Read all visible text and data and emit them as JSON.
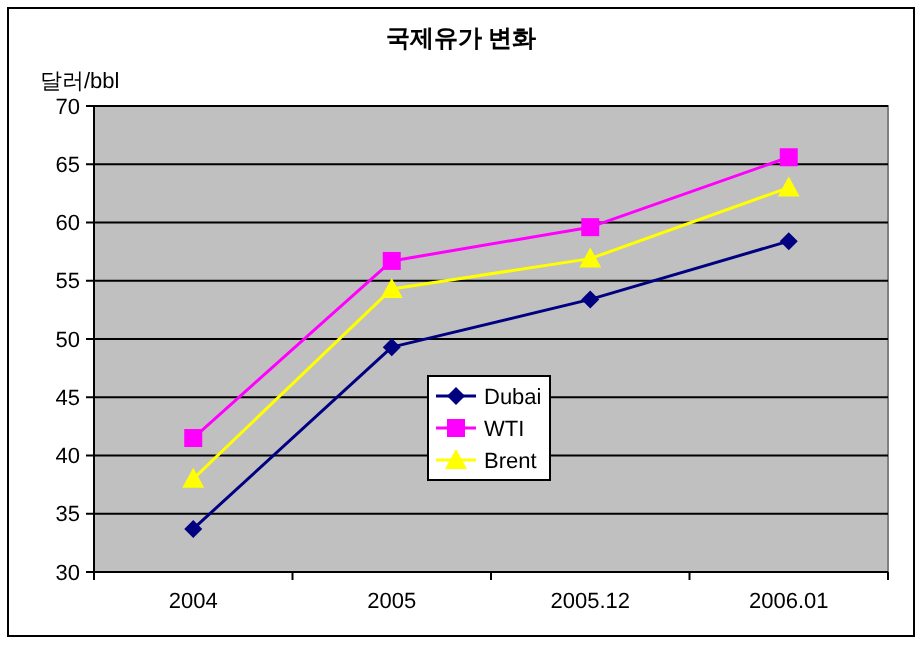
{
  "chart_data": {
    "type": "line",
    "title": "국제유가 변화",
    "ylabel": "달러/bbl",
    "categories": [
      "2004",
      "2005",
      "2005.12",
      "2006.01"
    ],
    "series": [
      {
        "name": "Dubai",
        "color": "#000080",
        "marker": "diamond",
        "values": [
          33.7,
          49.3,
          53.4,
          58.4
        ]
      },
      {
        "name": "WTI",
        "color": "#ff00ff",
        "marker": "square",
        "values": [
          41.5,
          56.7,
          59.6,
          65.6
        ]
      },
      {
        "name": "Brent",
        "color": "#ffff00",
        "marker": "triangle",
        "values": [
          38.0,
          54.3,
          56.9,
          63.0
        ]
      }
    ],
    "ylim": [
      30,
      70
    ],
    "yticks": [
      30,
      35,
      40,
      45,
      50,
      55,
      60,
      65,
      70
    ],
    "grid": "y",
    "legend": "center"
  }
}
